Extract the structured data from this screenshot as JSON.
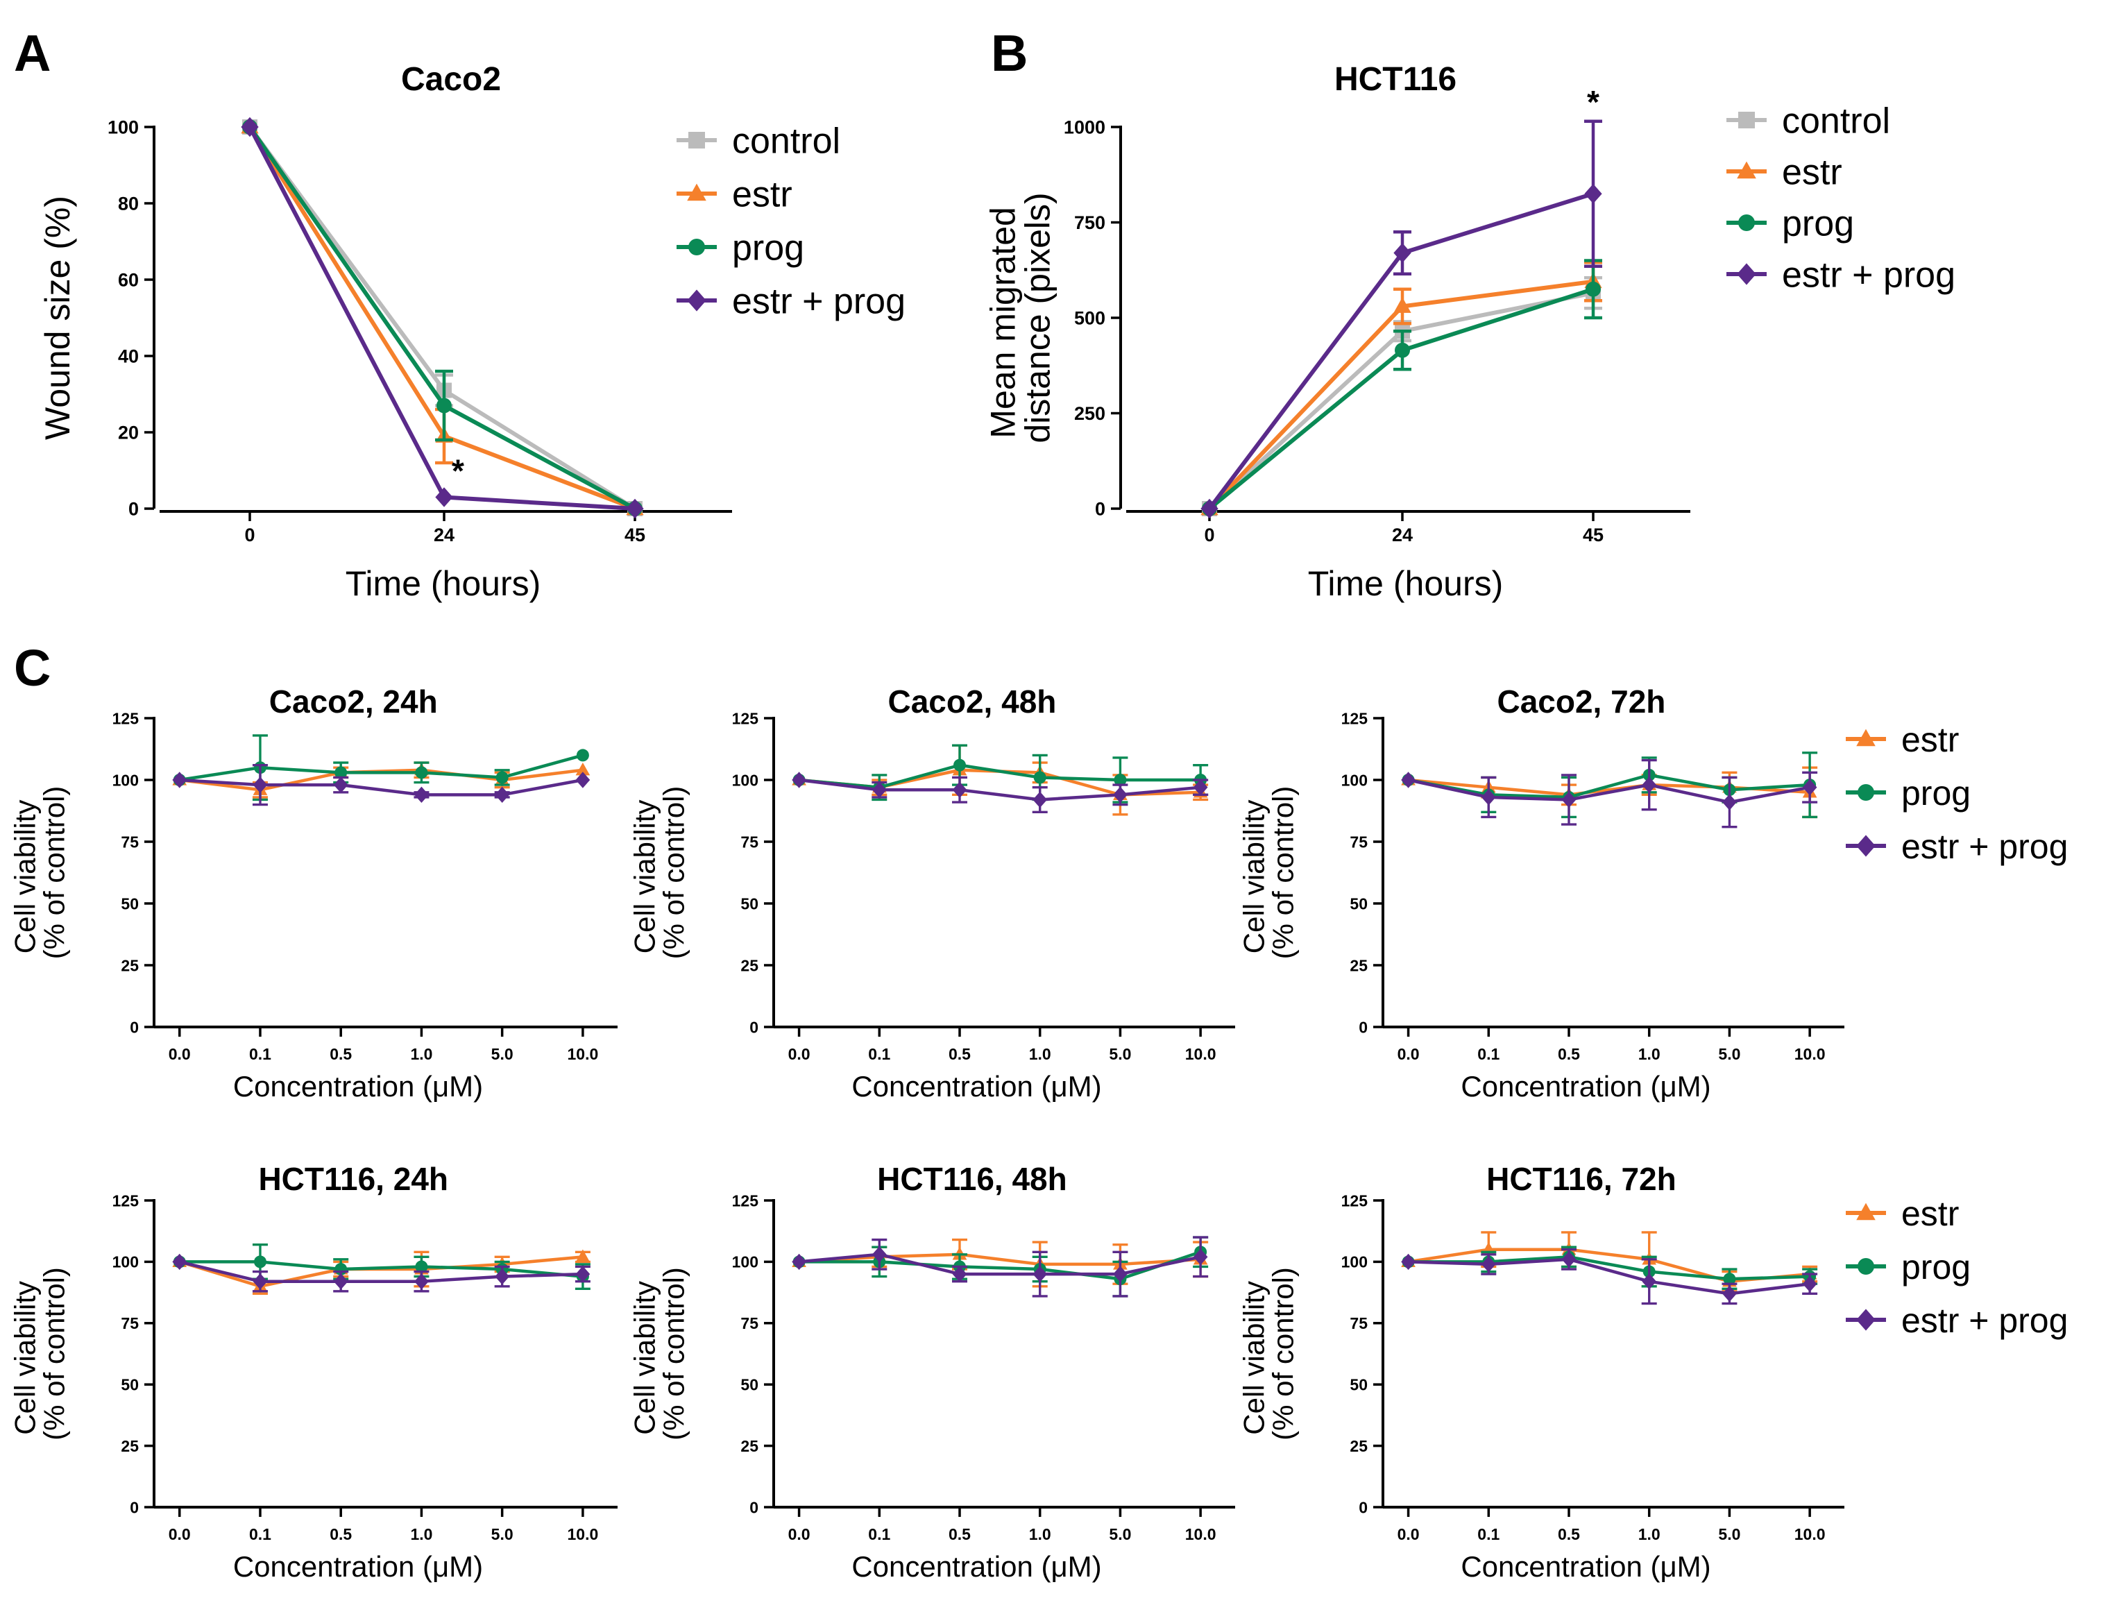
{
  "panel_labels": [
    "A",
    "B",
    "C"
  ],
  "colors": {
    "control": "#bbbbbb",
    "estr": "#f5802b",
    "prog": "#0a8a55",
    "estr_prog": "#5a2a8a",
    "axis": "#000000"
  },
  "legends": {
    "a": [
      "control",
      "estr",
      "prog",
      "estr + prog"
    ],
    "b": [
      "control",
      "estr",
      "prog",
      "estr + prog"
    ],
    "c_top": [
      "estr",
      "prog",
      "estr + prog"
    ],
    "c_bottom": [
      "estr",
      "prog",
      "estr + prog"
    ]
  },
  "chart_data": [
    {
      "id": "A",
      "type": "line",
      "title": "Caco2",
      "xlabel": "Time (hours)",
      "ylabel": "Wound size (%)",
      "categories": [
        "0",
        "24",
        "45"
      ],
      "x": [
        0,
        24,
        45
      ],
      "ylim": [
        0,
        100
      ],
      "yticks": [
        "0",
        "20",
        "40",
        "60",
        "80",
        "100"
      ],
      "series": [
        {
          "name": "control",
          "values": [
            100,
            31,
            0
          ],
          "errors": [
            0,
            4,
            0
          ]
        },
        {
          "name": "estr",
          "values": [
            100,
            19,
            0
          ],
          "errors": [
            0,
            7,
            0
          ]
        },
        {
          "name": "prog",
          "values": [
            100,
            27,
            0
          ],
          "errors": [
            0,
            9,
            0
          ]
        },
        {
          "name": "estr + prog",
          "values": [
            100,
            3,
            0
          ],
          "errors": [
            0,
            0,
            0
          ]
        }
      ],
      "annotations": [
        {
          "text": "*",
          "x": "24",
          "y": 3
        }
      ]
    },
    {
      "id": "B",
      "type": "line",
      "title": "HCT116",
      "xlabel": "Time (hours)",
      "ylabel": "Mean migrated distance (pixels)",
      "categories": [
        "0",
        "24",
        "45"
      ],
      "x": [
        0,
        24,
        45
      ],
      "ylim": [
        0,
        1000
      ],
      "yticks": [
        "0",
        "250",
        "500",
        "750",
        "1000"
      ],
      "series": [
        {
          "name": "control",
          "values": [
            0,
            465,
            565
          ],
          "errors": [
            0,
            25,
            40
          ]
        },
        {
          "name": "estr",
          "values": [
            0,
            530,
            595
          ],
          "errors": [
            0,
            45,
            50
          ]
        },
        {
          "name": "prog",
          "values": [
            0,
            415,
            575
          ],
          "errors": [
            0,
            50,
            75
          ]
        },
        {
          "name": "estr + prog",
          "values": [
            0,
            670,
            825
          ],
          "errors": [
            0,
            55,
            190
          ]
        }
      ],
      "annotations": [
        {
          "text": "*",
          "x": "45",
          "y": 1015
        }
      ]
    },
    {
      "id": "C-Caco2-24h",
      "type": "line",
      "title": "Caco2, 24h",
      "xlabel": "Concentration (μM)",
      "ylabel": "Cell viability (% of control)",
      "categories": [
        "0.0",
        "0.1",
        "0.5",
        "1.0",
        "5.0",
        "10.0"
      ],
      "ylim": [
        0,
        125
      ],
      "yticks": [
        "0",
        "25",
        "50",
        "75",
        "100",
        "125"
      ],
      "series": [
        {
          "name": "estr",
          "values": [
            100,
            96,
            103,
            104,
            100,
            104
          ],
          "errors": [
            0,
            3,
            2,
            3,
            3,
            0
          ]
        },
        {
          "name": "prog",
          "values": [
            100,
            105,
            103,
            103,
            101,
            110
          ],
          "errors": [
            0,
            13,
            4,
            4,
            3,
            0
          ]
        },
        {
          "name": "estr + prog",
          "values": [
            100,
            98,
            98,
            94,
            94,
            100
          ],
          "errors": [
            0,
            8,
            3,
            1,
            1,
            0
          ]
        }
      ]
    },
    {
      "id": "C-Caco2-48h",
      "type": "line",
      "title": "Caco2, 48h",
      "xlabel": "Concentration (μM)",
      "ylabel": "Cell viability (% of control)",
      "categories": [
        "0.0",
        "0.1",
        "0.5",
        "1.0",
        "5.0",
        "10.0"
      ],
      "ylim": [
        0,
        125
      ],
      "yticks": [
        "0",
        "25",
        "50",
        "75",
        "100",
        "125"
      ],
      "series": [
        {
          "name": "estr",
          "values": [
            100,
            97,
            104,
            103,
            94,
            95
          ],
          "errors": [
            0,
            3,
            10,
            4,
            8,
            3
          ]
        },
        {
          "name": "prog",
          "values": [
            100,
            97,
            106,
            101,
            100,
            100
          ],
          "errors": [
            0,
            5,
            8,
            9,
            9,
            6
          ]
        },
        {
          "name": "estr + prog",
          "values": [
            100,
            96,
            96,
            92,
            94,
            97
          ],
          "errors": [
            0,
            3,
            5,
            5,
            4,
            3
          ]
        }
      ]
    },
    {
      "id": "C-Caco2-72h",
      "type": "line",
      "title": "Caco2, 72h",
      "xlabel": "Concentration (μM)",
      "ylabel": "Cell viability (% of control)",
      "categories": [
        "0.0",
        "0.1",
        "0.5",
        "1.0",
        "5.0",
        "10.0"
      ],
      "ylim": [
        0,
        125
      ],
      "yticks": [
        "0",
        "25",
        "50",
        "75",
        "100",
        "125"
      ],
      "series": [
        {
          "name": "estr",
          "values": [
            100,
            97,
            94,
            98,
            97,
            95
          ],
          "errors": [
            0,
            4,
            4,
            4,
            6,
            10
          ]
        },
        {
          "name": "prog",
          "values": [
            100,
            94,
            93,
            102,
            96,
            98
          ],
          "errors": [
            0,
            7,
            8,
            7,
            5,
            13
          ]
        },
        {
          "name": "estr + prog",
          "values": [
            100,
            93,
            92,
            98,
            91,
            97
          ],
          "errors": [
            0,
            8,
            10,
            10,
            10,
            6
          ]
        }
      ]
    },
    {
      "id": "C-HCT116-24h",
      "type": "line",
      "title": "HCT116, 24h",
      "xlabel": "Concentration (μM)",
      "ylabel": "Cell viability (% of control)",
      "categories": [
        "0.0",
        "0.1",
        "0.5",
        "1.0",
        "5.0",
        "10.0"
      ],
      "ylim": [
        0,
        125
      ],
      "yticks": [
        "0",
        "25",
        "50",
        "75",
        "100",
        "125"
      ],
      "series": [
        {
          "name": "estr",
          "values": [
            100,
            90,
            97,
            97,
            99,
            102
          ],
          "errors": [
            0,
            3,
            3,
            7,
            3,
            2
          ]
        },
        {
          "name": "prog",
          "values": [
            100,
            100,
            97,
            98,
            97,
            94
          ],
          "errors": [
            0,
            7,
            4,
            4,
            3,
            5
          ]
        },
        {
          "name": "estr + prog",
          "values": [
            100,
            92,
            92,
            92,
            94,
            95
          ],
          "errors": [
            0,
            4,
            4,
            4,
            4,
            3
          ]
        }
      ]
    },
    {
      "id": "C-HCT116-48h",
      "type": "line",
      "title": "HCT116, 48h",
      "xlabel": "Concentration (μM)",
      "ylabel": "Cell viability (% of control)",
      "categories": [
        "0.0",
        "0.1",
        "0.5",
        "1.0",
        "5.0",
        "10.0"
      ],
      "ylim": [
        0,
        125
      ],
      "yticks": [
        "0",
        "25",
        "50",
        "75",
        "100",
        "125"
      ],
      "series": [
        {
          "name": "estr",
          "values": [
            100,
            102,
            103,
            99,
            99,
            101
          ],
          "errors": [
            0,
            4,
            6,
            9,
            8,
            7
          ]
        },
        {
          "name": "prog",
          "values": [
            100,
            100,
            98,
            97,
            93,
            104
          ],
          "errors": [
            0,
            6,
            5,
            5,
            7,
            6
          ]
        },
        {
          "name": "estr + prog",
          "values": [
            100,
            103,
            95,
            95,
            95,
            102
          ],
          "errors": [
            0,
            6,
            3,
            9,
            9,
            8
          ]
        }
      ]
    },
    {
      "id": "C-HCT116-72h",
      "type": "line",
      "title": "HCT116, 72h",
      "xlabel": "Concentration (μM)",
      "ylabel": "Cell viability (% of control)",
      "categories": [
        "0.0",
        "0.1",
        "0.5",
        "1.0",
        "5.0",
        "10.0"
      ],
      "ylim": [
        0,
        125
      ],
      "yticks": [
        "0",
        "25",
        "50",
        "75",
        "100",
        "125"
      ],
      "series": [
        {
          "name": "estr",
          "values": [
            100,
            105,
            105,
            101,
            92,
            95
          ],
          "errors": [
            0,
            7,
            7,
            11,
            4,
            3
          ]
        },
        {
          "name": "prog",
          "values": [
            100,
            100,
            102,
            96,
            93,
            94
          ],
          "errors": [
            0,
            4,
            4,
            6,
            4,
            3
          ]
        },
        {
          "name": "estr + prog",
          "values": [
            100,
            99,
            101,
            92,
            87,
            91
          ],
          "errors": [
            0,
            4,
            4,
            9,
            4,
            4
          ]
        }
      ]
    }
  ]
}
